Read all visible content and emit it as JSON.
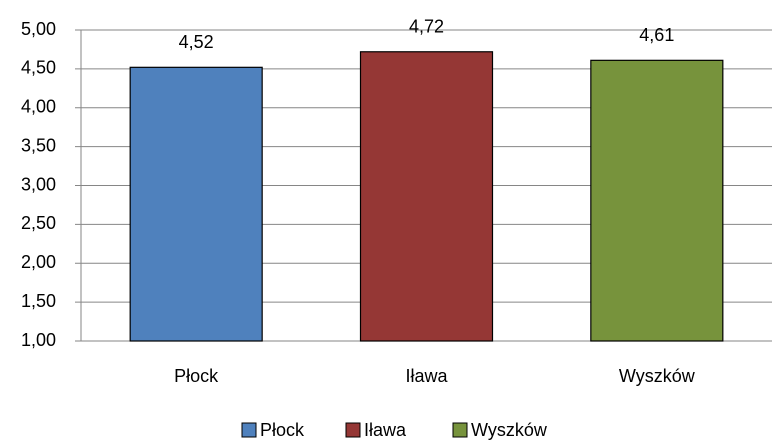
{
  "chart_data": {
    "type": "bar",
    "categories": [
      "Płock",
      "Iława",
      "Wyszków"
    ],
    "values": [
      4.52,
      4.72,
      4.61
    ],
    "value_labels": [
      "4,52",
      "4,72",
      "4,61"
    ],
    "colors": [
      "#4f81bd",
      "#953735",
      "#77933c"
    ],
    "ylim": [
      1,
      5
    ],
    "yticks": [
      {
        "value": 1,
        "label": "1,00"
      },
      {
        "value": 1.5,
        "label": "1,50"
      },
      {
        "value": 2,
        "label": "2,00"
      },
      {
        "value": 2.5,
        "label": "2,50"
      },
      {
        "value": 3,
        "label": "3,00"
      },
      {
        "value": 3.5,
        "label": "3,50"
      },
      {
        "value": 4,
        "label": "4,00"
      },
      {
        "value": 4.5,
        "label": "4,50"
      },
      {
        "value": 5,
        "label": "5,00"
      }
    ],
    "grid": true,
    "legend": "bottom"
  }
}
